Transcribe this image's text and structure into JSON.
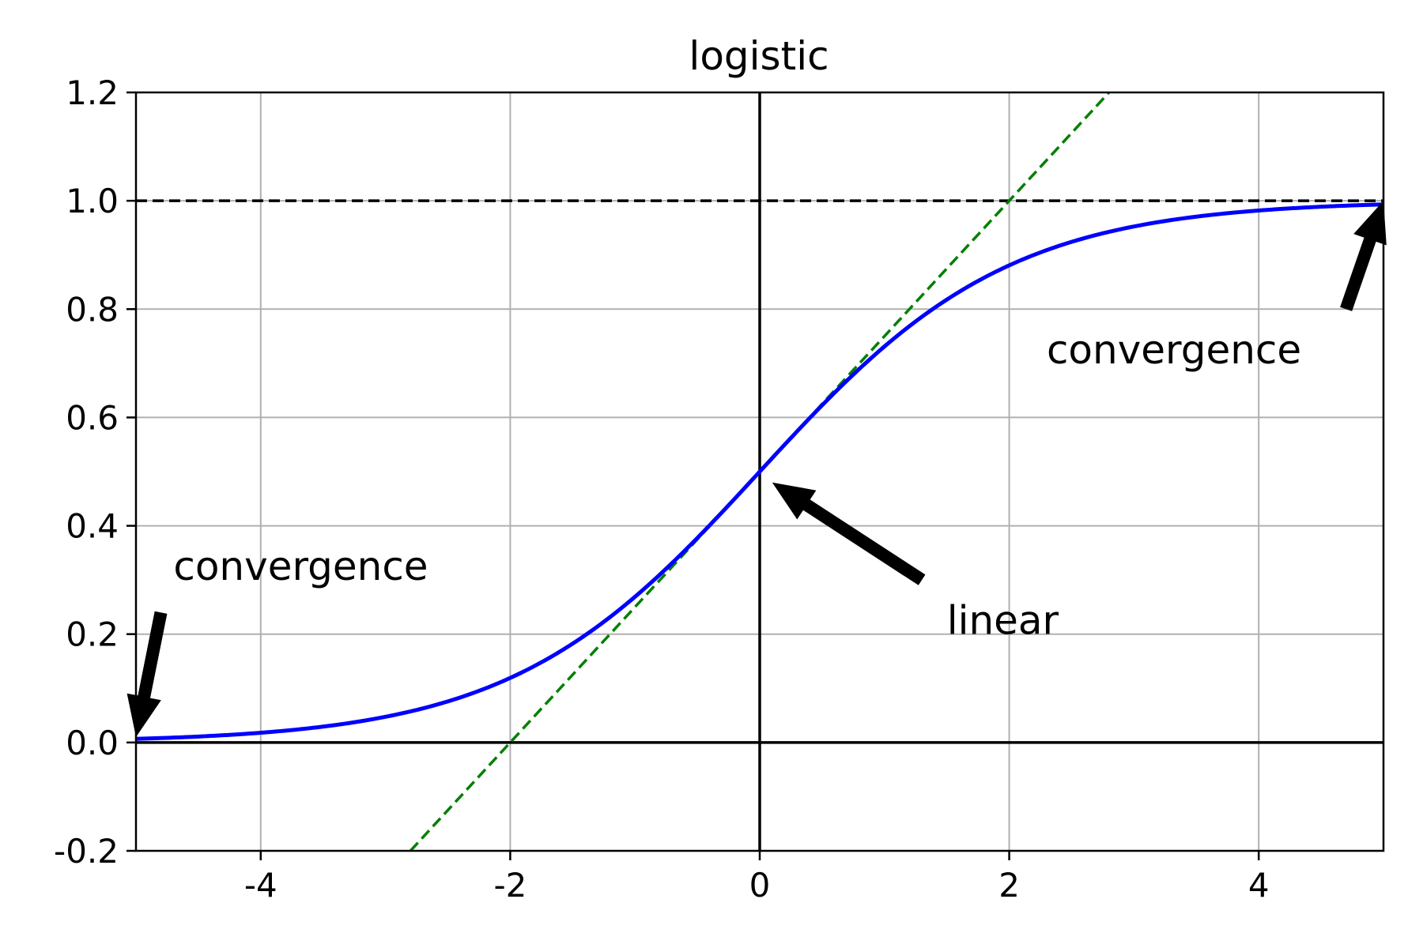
{
  "chart_data": {
    "type": "line",
    "title": "logistic",
    "xlabel": "",
    "ylabel": "",
    "xlim": [
      -5,
      5
    ],
    "ylim": [
      -0.2,
      1.2
    ],
    "grid": true,
    "x_ticks": [
      -4,
      -2,
      0,
      2,
      4
    ],
    "x_tick_labels": [
      "-4",
      "-2",
      "0",
      "2",
      "4"
    ],
    "y_ticks": [
      -0.2,
      0.0,
      0.2,
      0.4,
      0.6,
      0.8,
      1.0,
      1.2
    ],
    "y_tick_labels": [
      "-0.2",
      "0.0",
      "0.2",
      "0.4",
      "0.6",
      "0.8",
      "1.0",
      "1.2"
    ],
    "series": [
      {
        "style": "solid",
        "color": "#0000ff",
        "function": "logistic",
        "x": [
          -5,
          -4.5,
          -4,
          -3.5,
          -3,
          -2.5,
          -2,
          -1.5,
          -1,
          -0.5,
          0,
          0.5,
          1,
          1.5,
          2,
          2.5,
          3,
          3.5,
          4,
          4.5,
          5
        ],
        "values": [
          0.0067,
          0.011,
          0.018,
          0.0293,
          0.0474,
          0.0759,
          0.1192,
          0.1824,
          0.2689,
          0.3775,
          0.5,
          0.6225,
          0.7311,
          0.8176,
          0.8808,
          0.9241,
          0.9526,
          0.9707,
          0.982,
          0.989,
          0.9933
        ]
      },
      {
        "style": "dashed",
        "color": "#008000",
        "x": [
          -2.8,
          2.8
        ],
        "values": [
          -0.2,
          1.2
        ]
      },
      {
        "style": "dashed",
        "color": "#000000",
        "x": [
          -5,
          5
        ],
        "values": [
          1.0,
          1.0
        ]
      },
      {
        "style": "solid",
        "color": "#000000",
        "x": [
          -5,
          5
        ],
        "values": [
          0.0,
          0.0
        ]
      },
      {
        "style": "solid",
        "color": "#000000",
        "x": [
          0,
          0
        ],
        "values": [
          -0.2,
          1.2
        ]
      }
    ],
    "annotations": [
      {
        "text": "convergence",
        "text_x": -4.7,
        "text_y": 0.3,
        "tail": [
          -4.8,
          0.24
        ],
        "head": [
          -5,
          0.01
        ]
      },
      {
        "text": "convergence",
        "text_x": 2.3,
        "text_y": 0.7,
        "tail": [
          4.7,
          0.8
        ],
        "head": [
          5,
          1.0
        ]
      },
      {
        "text": "linear",
        "text_x": 1.5,
        "text_y": 0.2,
        "tail": [
          1.3,
          0.3
        ],
        "head": [
          0.1,
          0.48
        ]
      }
    ]
  }
}
